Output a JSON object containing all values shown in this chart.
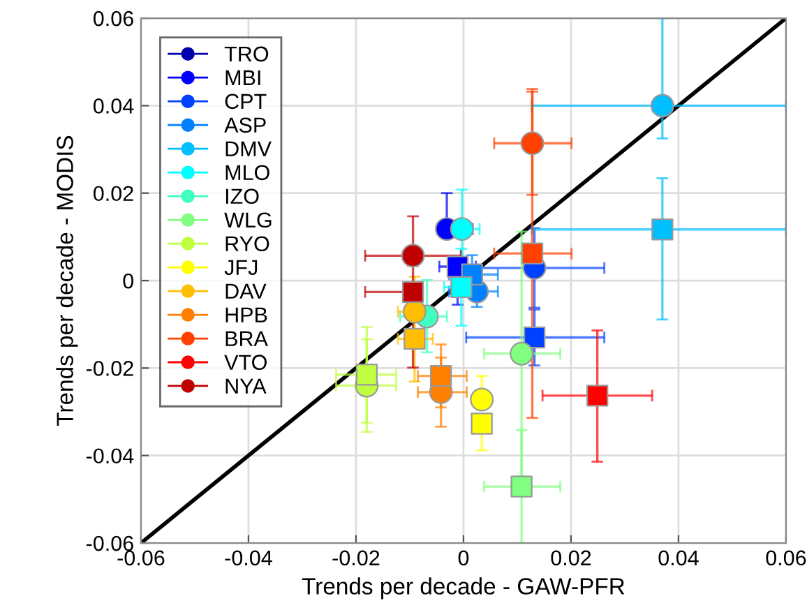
{
  "chart_data": {
    "type": "scatter",
    "xlabel": "Trends per decade - GAW-PFR",
    "ylabel": "Trends per decade - MODIS",
    "xlim": [
      -0.06,
      0.06
    ],
    "ylim": [
      -0.06,
      0.06
    ],
    "xticks": [
      -0.06,
      -0.04,
      -0.02,
      0,
      0.02,
      0.04,
      0.06
    ],
    "yticks": [
      -0.06,
      -0.04,
      -0.02,
      0,
      0.02,
      0.04,
      0.06
    ],
    "grid": true,
    "legend": "top left",
    "series": [
      {
        "type": "line",
        "color": "#000000",
        "x": [
          -0.06,
          0.06
        ],
        "values": [
          -0.06,
          0.06
        ],
        "marker": "none",
        "line_style": "solid"
      },
      {
        "name": "TRO",
        "color": "#0000aa",
        "marker": "circle",
        "x": [
          null
        ],
        "values": [
          null
        ]
      },
      {
        "name": "MBI",
        "color": "#0000ff",
        "marker": "circle",
        "x": [
          -0.0031
        ],
        "values": [
          0.0118
        ],
        "xerrors": [
          [
            -0.0049,
            0.0017
          ]
        ],
        "errors": [
          [
            0.0118,
            0.02
          ]
        ]
      },
      {
        "color": "#0000ff",
        "marker": "square",
        "x": [
          -0.0011
        ],
        "values": [
          0.0032
        ],
        "xerrors": [
          [
            -0.0045,
            0.0023
          ]
        ],
        "errors": [
          [
            -0.0055,
            0.0032
          ]
        ]
      },
      {
        "name": "CPT",
        "color": "#0040ff",
        "marker": "circle",
        "x": [
          0.0132
        ],
        "values": [
          0.0029
        ],
        "xerrors": [
          [
            0.0002,
            0.0262
          ]
        ],
        "errors": [
          [
            -0.0062,
            0.012
          ]
        ]
      },
      {
        "color": "#0040ff",
        "marker": "square",
        "x": [
          0.0132
        ],
        "values": [
          -0.013
        ],
        "xerrors": [
          [
            0.0005,
            0.0262
          ]
        ],
        "errors": [
          [
            -0.0194,
            -0.0066
          ]
        ]
      },
      {
        "name": "ASP",
        "color": "#0080ff",
        "marker": "circle",
        "x": [
          0.0025
        ],
        "values": [
          -0.0025
        ],
        "xerrors": [
          [
            -0.0027,
            0.0064
          ]
        ],
        "errors": [
          [
            -0.006,
            -0.0018
          ]
        ]
      },
      {
        "color": "#0080ff",
        "marker": "square",
        "x": [
          0.0016
        ],
        "values": [
          0.0014
        ],
        "xerrors": [
          [
            -0.0027,
            0.0064
          ]
        ],
        "errors": [
          [
            -0.003,
            0.0058
          ]
        ]
      },
      {
        "name": "DMV",
        "color": "#00bfff",
        "marker": "circle",
        "x": [
          0.037
        ],
        "values": [
          0.04
        ],
        "xerrors": [
          [
            0.0127,
            0.06
          ]
        ],
        "errors": [
          [
            0.0325,
            0.06
          ]
        ]
      },
      {
        "color": "#00bfff",
        "marker": "square",
        "x": [
          0.037
        ],
        "values": [
          0.0117
        ],
        "xerrors": [
          [
            0.0127,
            0.06
          ]
        ],
        "errors": [
          [
            -0.0089,
            0.0234
          ]
        ]
      },
      {
        "name": "MLO",
        "color": "#00ffff",
        "marker": "circle",
        "x": [
          -0.0003
        ],
        "values": [
          0.0118
        ],
        "xerrors": [
          [
            -0.0049,
            0.003
          ]
        ],
        "errors": [
          [
            0.0028,
            0.0208
          ]
        ]
      },
      {
        "color": "#00ffff",
        "marker": "square",
        "x": [
          -0.0004
        ],
        "values": [
          -0.0015
        ],
        "xerrors": [
          [
            -0.0036,
            0.0028
          ]
        ],
        "errors": [
          [
            -0.0103,
            0.0073
          ]
        ]
      },
      {
        "name": "IZO",
        "color": "#40ffbf",
        "marker": "circle",
        "x": [
          -0.0068
        ],
        "values": [
          -0.0082
        ],
        "xerrors": [
          [
            -0.0118,
            -0.0031
          ]
        ],
        "errors": [
          [
            -0.0164,
            0.0001
          ]
        ]
      },
      {
        "name": "WLG",
        "color": "#80ff80",
        "marker": "circle",
        "x": [
          0.0108
        ],
        "values": [
          -0.0167
        ],
        "xerrors": [
          [
            0.0038,
            0.018
          ]
        ],
        "errors": [
          [
            -0.0447,
            0.0112
          ]
        ]
      },
      {
        "color": "#80ff80",
        "marker": "square",
        "x": [
          0.0108
        ],
        "values": [
          -0.0471
        ],
        "xerrors": [
          [
            0.0038,
            0.018
          ]
        ],
        "errors": [
          [
            -0.06,
            -0.0342
          ]
        ]
      },
      {
        "name": "RYO",
        "color": "#bfff40",
        "marker": "circle",
        "x": [
          -0.018
        ],
        "values": [
          -0.024
        ],
        "xerrors": [
          [
            -0.0237,
            -0.0125
          ]
        ],
        "errors": [
          [
            -0.0346,
            -0.0134
          ]
        ]
      },
      {
        "color": "#bfff40",
        "marker": "square",
        "x": [
          -0.018
        ],
        "values": [
          -0.0215
        ],
        "xerrors": [
          [
            -0.0237,
            -0.0125
          ]
        ],
        "errors": [
          [
            -0.0325,
            -0.0106
          ]
        ]
      },
      {
        "name": "JFJ",
        "color": "#ffff00",
        "marker": "circle",
        "x": [
          0.0034
        ],
        "values": [
          -0.0272
        ],
        "xerrors": [
          [
            0.0017,
            0.0051
          ]
        ],
        "errors": [
          [
            -0.0272,
            -0.0218
          ]
        ]
      },
      {
        "color": "#ffff00",
        "marker": "square",
        "x": [
          0.0034
        ],
        "values": [
          -0.0327
        ],
        "xerrors": [
          [
            0.0017,
            0.0051
          ]
        ],
        "errors": [
          [
            -0.0388,
            -0.0327
          ]
        ]
      },
      {
        "name": "DAV",
        "color": "#ffbf00",
        "marker": "circle",
        "x": [
          -0.0091
        ],
        "values": [
          -0.0071
        ],
        "xerrors": [
          [
            -0.0122,
            -0.0057
          ]
        ],
        "errors": [
          [
            -0.0151,
            0.0009
          ]
        ]
      },
      {
        "color": "#ffbf00",
        "marker": "square",
        "x": [
          -0.0091
        ],
        "values": [
          -0.0133
        ],
        "xerrors": [
          [
            -0.0122,
            -0.0057
          ]
        ],
        "errors": [
          [
            -0.0231,
            -0.0133
          ]
        ]
      },
      {
        "name": "HPB",
        "color": "#ff8000",
        "marker": "circle",
        "x": [
          -0.0042
        ],
        "values": [
          -0.0255
        ],
        "xerrors": [
          [
            -0.0085,
            0.0006
          ]
        ],
        "errors": [
          [
            -0.0334,
            -0.0176
          ]
        ]
      },
      {
        "color": "#ff8000",
        "marker": "square",
        "x": [
          -0.0042
        ],
        "values": [
          -0.0218
        ],
        "xerrors": [
          [
            -0.0085,
            0.0006
          ]
        ],
        "errors": [
          [
            -0.029,
            -0.0146
          ]
        ]
      },
      {
        "name": "BRA",
        "color": "#ff4000",
        "marker": "circle",
        "x": [
          0.0128
        ],
        "values": [
          0.0314
        ],
        "xerrors": [
          [
            0.0057,
            0.0201
          ]
        ],
        "errors": [
          [
            0.0196,
            0.0432
          ]
        ]
      },
      {
        "color": "#ff4000",
        "marker": "square",
        "x": [
          0.0128
        ],
        "values": [
          0.0062
        ],
        "xerrors": [
          [
            0.0057,
            0.0201
          ]
        ],
        "errors": [
          [
            -0.0314,
            0.0438
          ]
        ]
      },
      {
        "name": "VTO",
        "color": "#ff0000",
        "marker": "circle",
        "x": [
          null
        ],
        "values": [
          null
        ]
      },
      {
        "color": "#ff0000",
        "marker": "square",
        "x": [
          0.0249
        ],
        "values": [
          -0.0263
        ],
        "xerrors": [
          [
            0.0147,
            0.0351
          ]
        ],
        "errors": [
          [
            -0.0414,
            -0.0114
          ]
        ]
      },
      {
        "name": "NYA",
        "color": "#bf0000",
        "marker": "circle",
        "x": [
          -0.0094
        ],
        "values": [
          0.0057
        ],
        "xerrors": [
          [
            -0.0183,
            -0.0005
          ]
        ],
        "errors": [
          [
            0.0057,
            0.0147
          ]
        ]
      },
      {
        "color": "#bf0000",
        "marker": "square",
        "x": [
          -0.0094
        ],
        "values": [
          -0.0026
        ],
        "xerrors": [
          [
            -0.0183,
            -0.0094
          ]
        ],
        "errors": [
          [
            -0.0199,
            0.0034
          ]
        ]
      }
    ]
  }
}
